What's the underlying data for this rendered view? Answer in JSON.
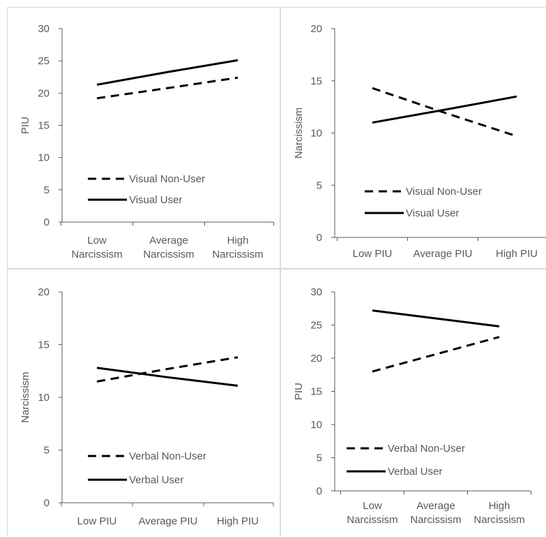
{
  "chart_data": [
    {
      "type": "line",
      "ylabel": "PIU",
      "ylim": [
        0,
        30
      ],
      "yticks": [
        0,
        5,
        10,
        15,
        20,
        25,
        30
      ],
      "categories": [
        [
          "Low",
          "Narcissism"
        ],
        [
          "Average",
          "Narcissism"
        ],
        [
          "High",
          "Narcissism"
        ]
      ],
      "legend_position": "bottom-left",
      "series": [
        {
          "name": "Visual Non-User",
          "style": "dashed",
          "values": [
            19.2,
            20.8,
            22.4
          ]
        },
        {
          "name": "Visual User",
          "style": "solid",
          "values": [
            21.3,
            23.3,
            25.1
          ]
        }
      ]
    },
    {
      "type": "line",
      "ylabel": "Narcissism",
      "ylim": [
        0,
        20
      ],
      "yticks": [
        0,
        5,
        10,
        15,
        20
      ],
      "categories": [
        [
          "Low PIU"
        ],
        [
          "Average PIU"
        ],
        [
          "High PIU"
        ]
      ],
      "legend_position": "bottom-left",
      "series": [
        {
          "name": "Visual Non-User",
          "style": "dashed",
          "values": [
            14.3,
            12.0,
            9.7
          ]
        },
        {
          "name": "Visual User",
          "style": "solid",
          "values": [
            11.0,
            12.2,
            13.5
          ]
        }
      ]
    },
    {
      "type": "line",
      "ylabel": "Narcissism",
      "ylim": [
        0,
        20
      ],
      "yticks": [
        0,
        5,
        10,
        15,
        20
      ],
      "categories": [
        [
          "Low PIU"
        ],
        [
          "Average PIU"
        ],
        [
          "High PIU"
        ]
      ],
      "legend_position": "bottom-left",
      "series": [
        {
          "name": "Verbal Non-User",
          "style": "dashed",
          "values": [
            11.5,
            12.7,
            13.8
          ]
        },
        {
          "name": "Verbal User",
          "style": "solid",
          "values": [
            12.8,
            11.9,
            11.1
          ]
        }
      ]
    },
    {
      "type": "line",
      "ylabel": "PIU",
      "ylim": [
        0,
        30
      ],
      "yticks": [
        0,
        5,
        10,
        15,
        20,
        25,
        30
      ],
      "categories": [
        [
          "Low",
          "Narcissism"
        ],
        [
          "Average",
          "Narcissism"
        ],
        [
          "High",
          "Narcissism"
        ]
      ],
      "legend_position": "bottom-left",
      "series": [
        {
          "name": "Verbal Non-User",
          "style": "dashed",
          "values": [
            18.0,
            20.6,
            23.2
          ]
        },
        {
          "name": "Verbal User",
          "style": "solid",
          "values": [
            27.2,
            26.0,
            24.8
          ]
        }
      ]
    }
  ]
}
